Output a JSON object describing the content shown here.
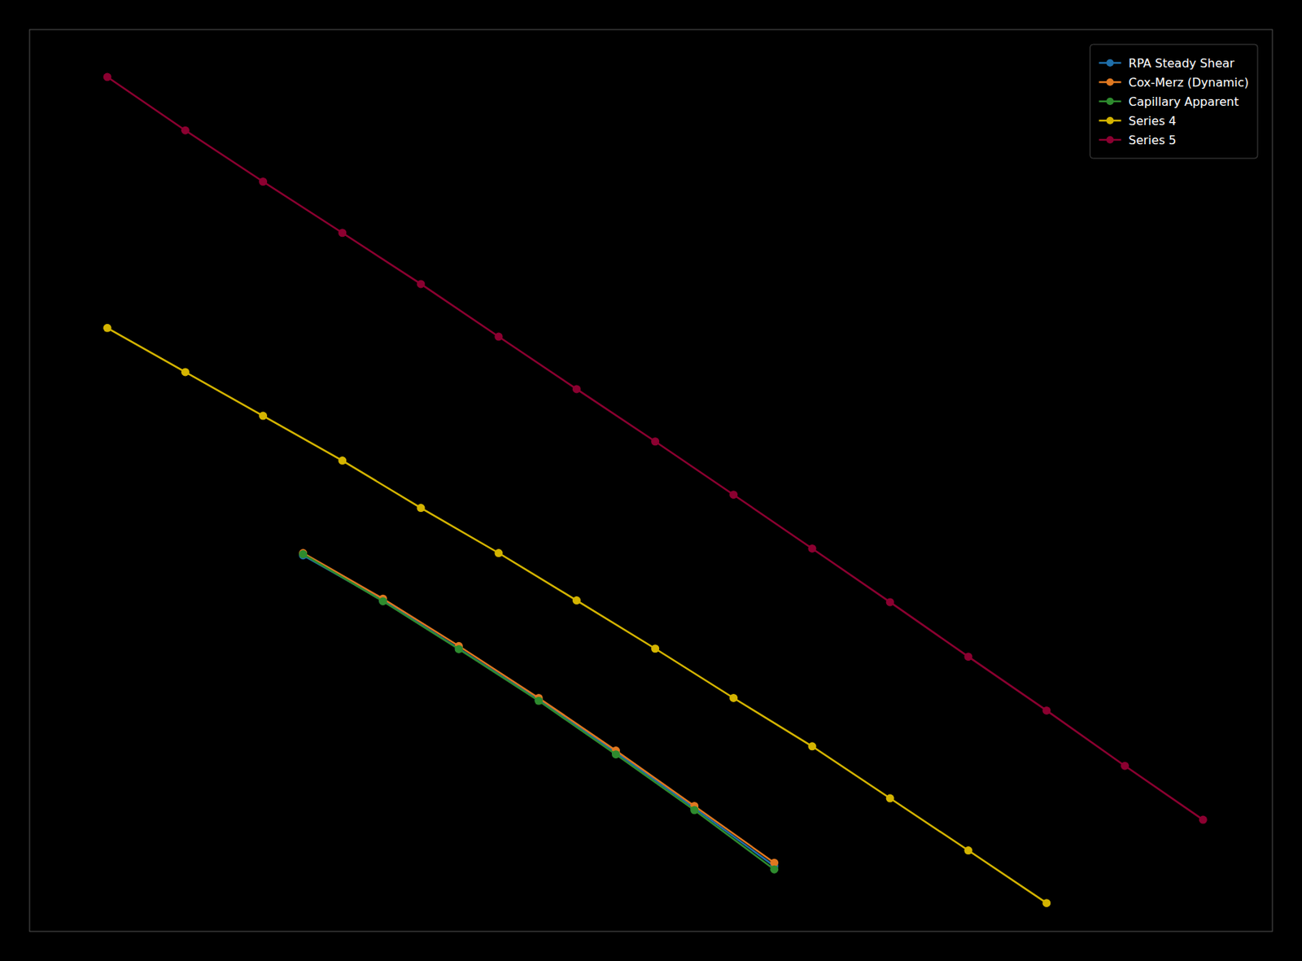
{
  "chart_data": {
    "type": "line",
    "log": true,
    "grid": false,
    "tick_labels": false,
    "legend": "upper right",
    "marker": "circle",
    "line_style": "solid",
    "xlim": [
      2.0,
      3000
    ],
    "ylim": [
      400,
      900000
    ],
    "series": [
      {
        "name": "RPA Steady Shear",
        "color": "#1f6faa",
        "x": [
          10.0,
          16.0,
          25.0,
          40.0,
          63.0,
          100.0,
          160.0
        ],
        "values": [
          10000,
          6800,
          4500,
          2900,
          1850,
          1150,
          700
        ]
      },
      {
        "name": "Cox-Merz (Dynamic)",
        "color": "#e07820",
        "x": [
          10.0,
          16.0,
          25.0,
          40.0,
          63.0,
          100.0,
          160.0
        ],
        "values": [
          10200,
          6900,
          4600,
          2950,
          1880,
          1170,
          720
        ]
      },
      {
        "name": "Capillary Apparent",
        "color": "#2e8b2e",
        "x": [
          10.0,
          16.0,
          25.0,
          40.0,
          63.0,
          100.0,
          160.0
        ],
        "values": [
          10100,
          6750,
          4480,
          2880,
          1820,
          1130,
          680
        ]
      },
      {
        "name": "Series 4",
        "color": "#d4b400",
        "x": [
          3.16,
          5.0,
          7.9,
          12.6,
          20.0,
          31.6,
          50.0,
          79.4,
          125.9,
          200.0,
          316.2,
          501.2,
          794.3
        ],
        "values": [
          70000,
          48000,
          33000,
          22500,
          15000,
          10200,
          6800,
          4500,
          2950,
          1950,
          1250,
          800,
          510
        ]
      },
      {
        "name": "Series 5",
        "color": "#8b0030",
        "x": [
          3.16,
          5.0,
          7.9,
          12.6,
          20.0,
          31.6,
          50.0,
          79.4,
          125.9,
          200.0,
          316.2,
          501.2,
          794.3,
          1259.0,
          1995.0
        ],
        "values": [
          600000,
          380000,
          245000,
          158000,
          102000,
          65000,
          41500,
          26500,
          16800,
          10600,
          6700,
          4200,
          2650,
          1650,
          1040
        ]
      }
    ]
  }
}
